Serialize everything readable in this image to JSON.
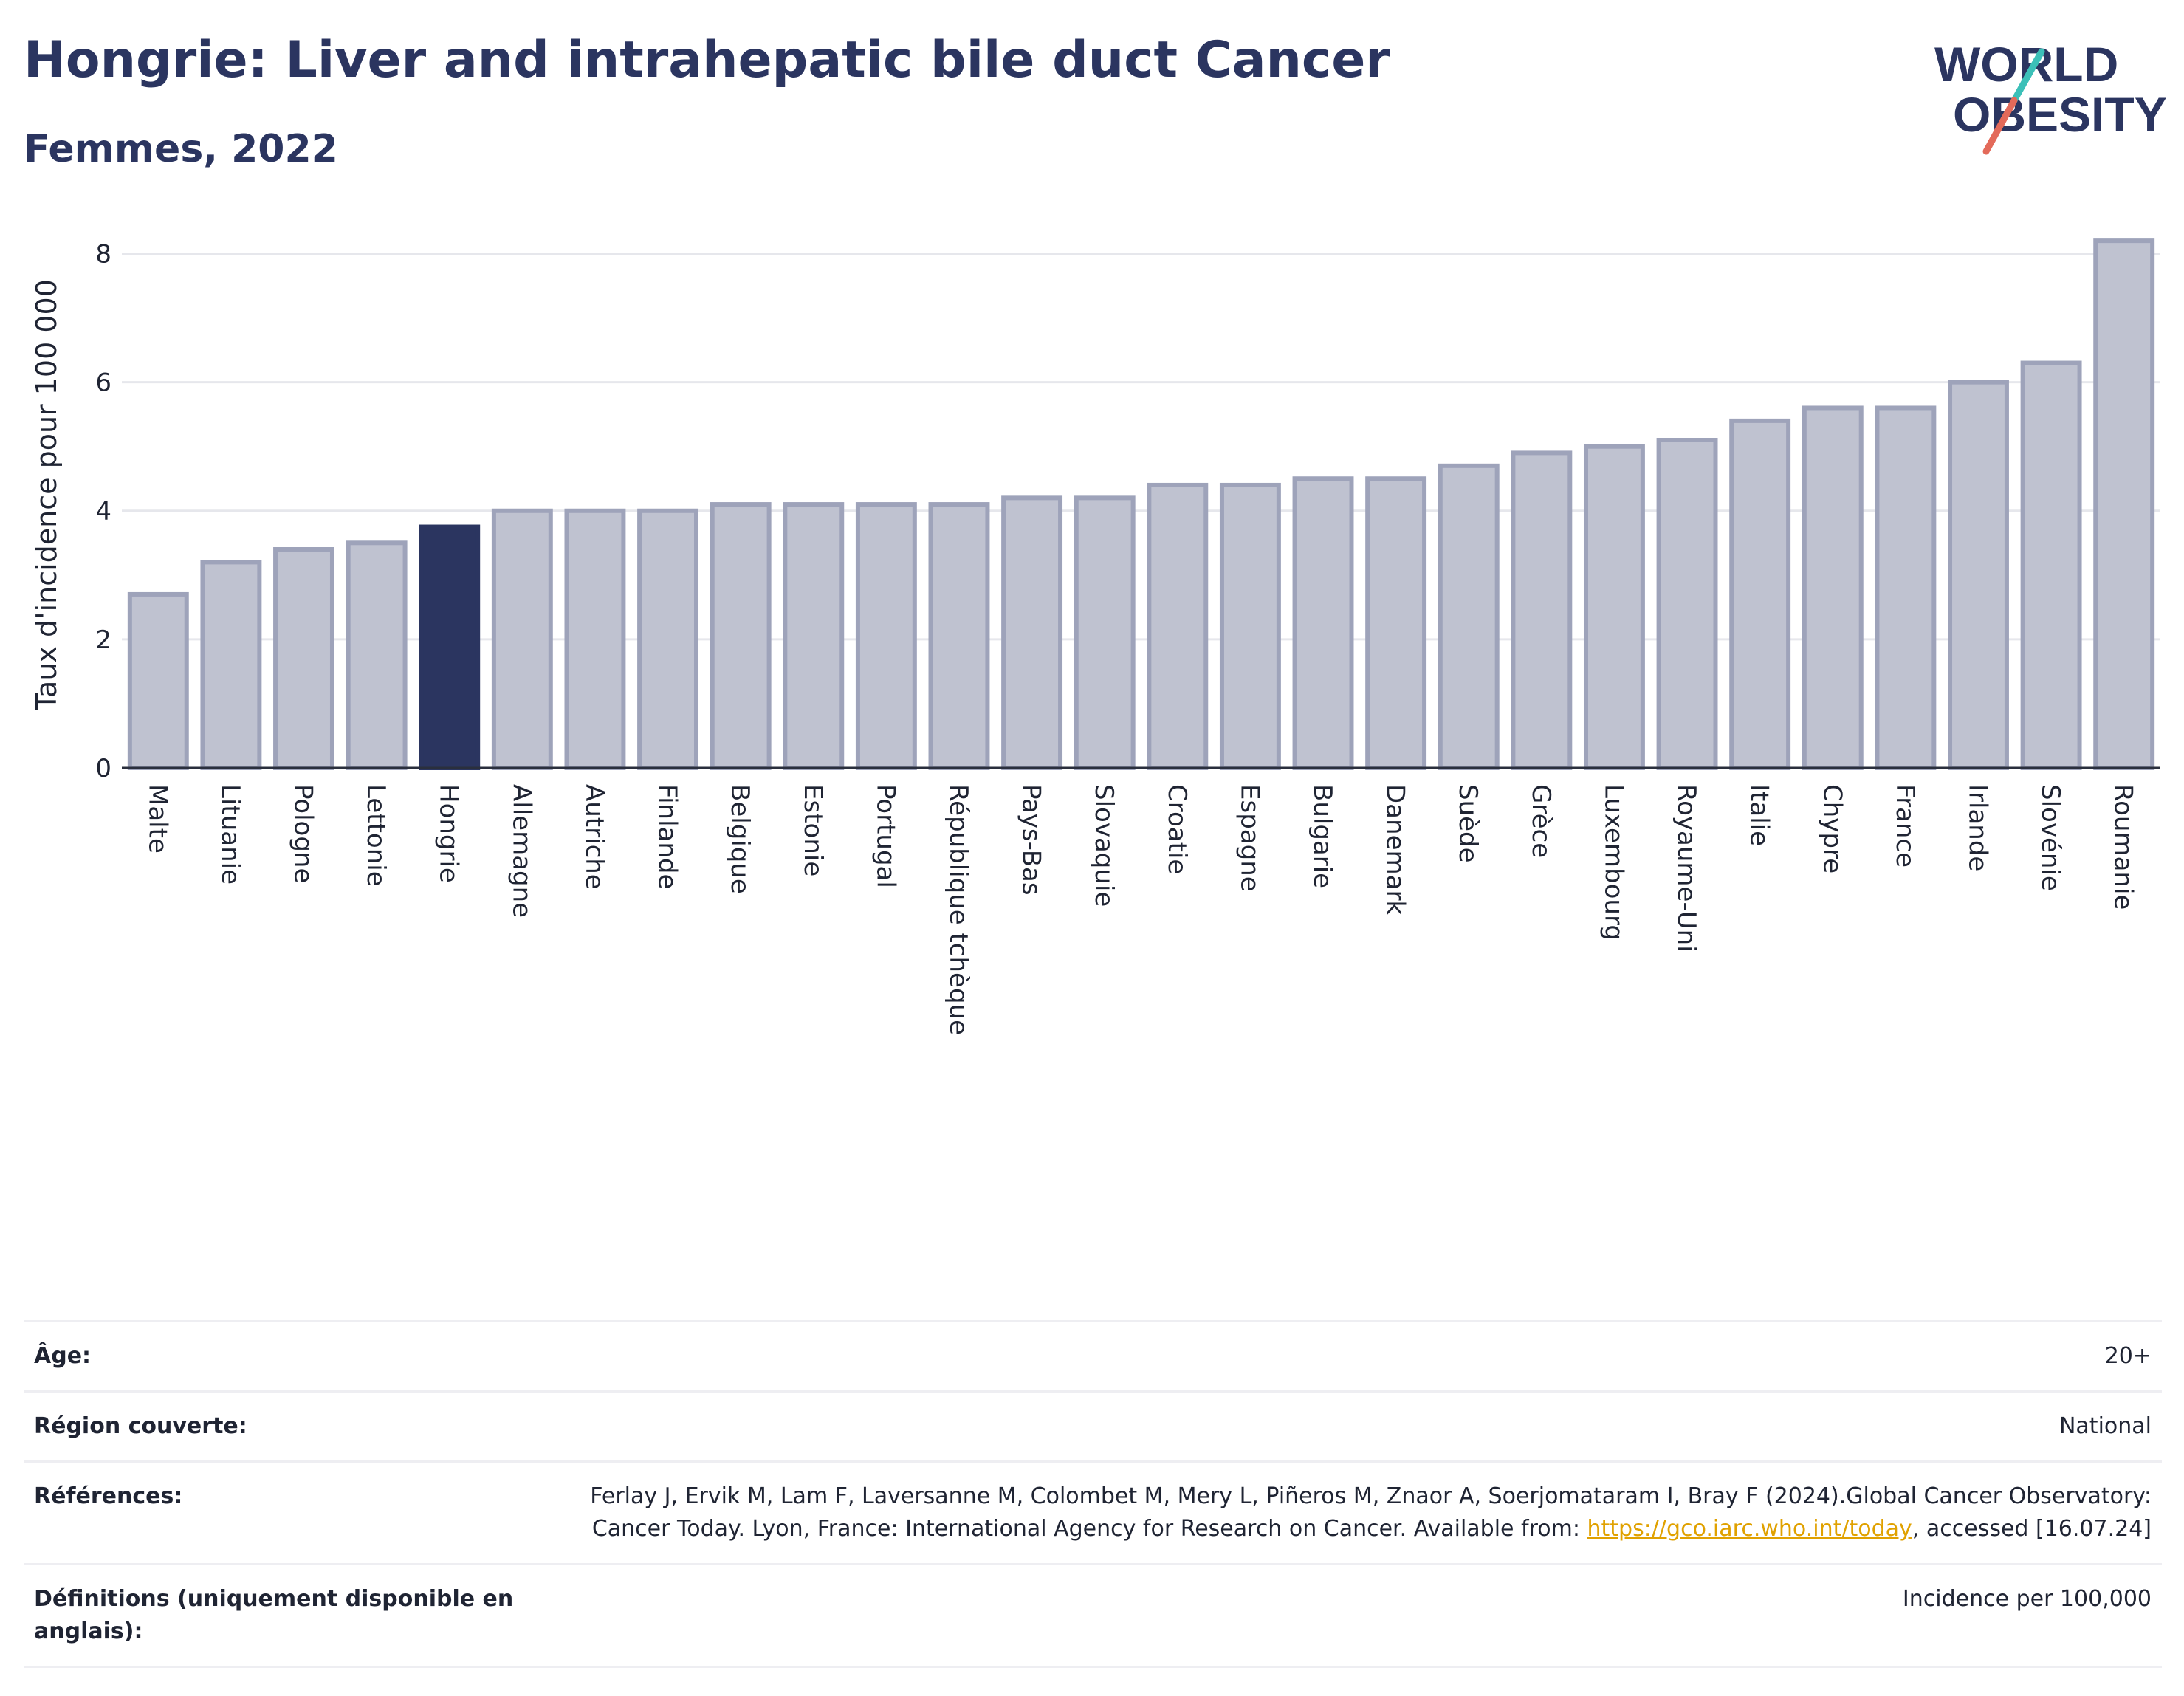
{
  "header": {
    "title": "Hongrie: Liver and intrahepatic bile duct Cancer",
    "subtitle": "Femmes, 2022"
  },
  "logo": {
    "line1": "WORLD",
    "line2": "OBESITY",
    "colors": {
      "text": "#2b3560",
      "slash_top": "#3cc0b8",
      "slash_bottom": "#e36a5a"
    }
  },
  "chart_data": {
    "type": "bar",
    "ylabel": "Taux d'incidence pour 100 000",
    "ylim": [
      0,
      8.5
    ],
    "yticks": [
      0,
      2,
      4,
      6,
      8
    ],
    "grid": true,
    "highlight": "Hongrie",
    "colors": {
      "bar": "#bfc2d0",
      "bar_border": "#9ea3ba",
      "highlight": "#2b3560"
    },
    "categories": [
      "Malte",
      "Lituanie",
      "Pologne",
      "Lettonie",
      "Hongrie",
      "Allemagne",
      "Autriche",
      "Finlande",
      "Belgique",
      "Estonie",
      "Portugal",
      "République tchèque",
      "Pays-Bas",
      "Slovaquie",
      "Croatie",
      "Espagne",
      "Bulgarie",
      "Danemark",
      "Suède",
      "Grèce",
      "Luxembourg",
      "Royaume-Uni",
      "Italie",
      "Chypre",
      "France",
      "Irlande",
      "Slovénie",
      "Roumanie"
    ],
    "values": [
      2.7,
      3.2,
      3.4,
      3.5,
      3.75,
      4.0,
      4.0,
      4.0,
      4.1,
      4.1,
      4.1,
      4.1,
      4.2,
      4.2,
      4.4,
      4.4,
      4.5,
      4.5,
      4.7,
      4.9,
      5.0,
      5.1,
      5.4,
      5.6,
      5.6,
      6.0,
      6.3,
      8.2
    ]
  },
  "meta": {
    "age_label": "Âge:",
    "age_value": "20+",
    "region_label": "Région couverte:",
    "region_value": "National",
    "ref_label": "Références:",
    "ref_text": "Ferlay J, Ervik M, Lam F, Laversanne M, Colombet M, Mery L, Piñeros M, Znaor A, Soerjomataram I, Bray F (2024).Global Cancer Observatory: Cancer Today. Lyon, France: International Agency for Research on Cancer. Available from: ",
    "ref_link": "https://gco.iarc.who.int/today",
    "ref_suffix": ", accessed [16.07.24]",
    "def_label": "Définitions (uniquement disponible en anglais):",
    "def_value": "Incidence per 100,000"
  }
}
